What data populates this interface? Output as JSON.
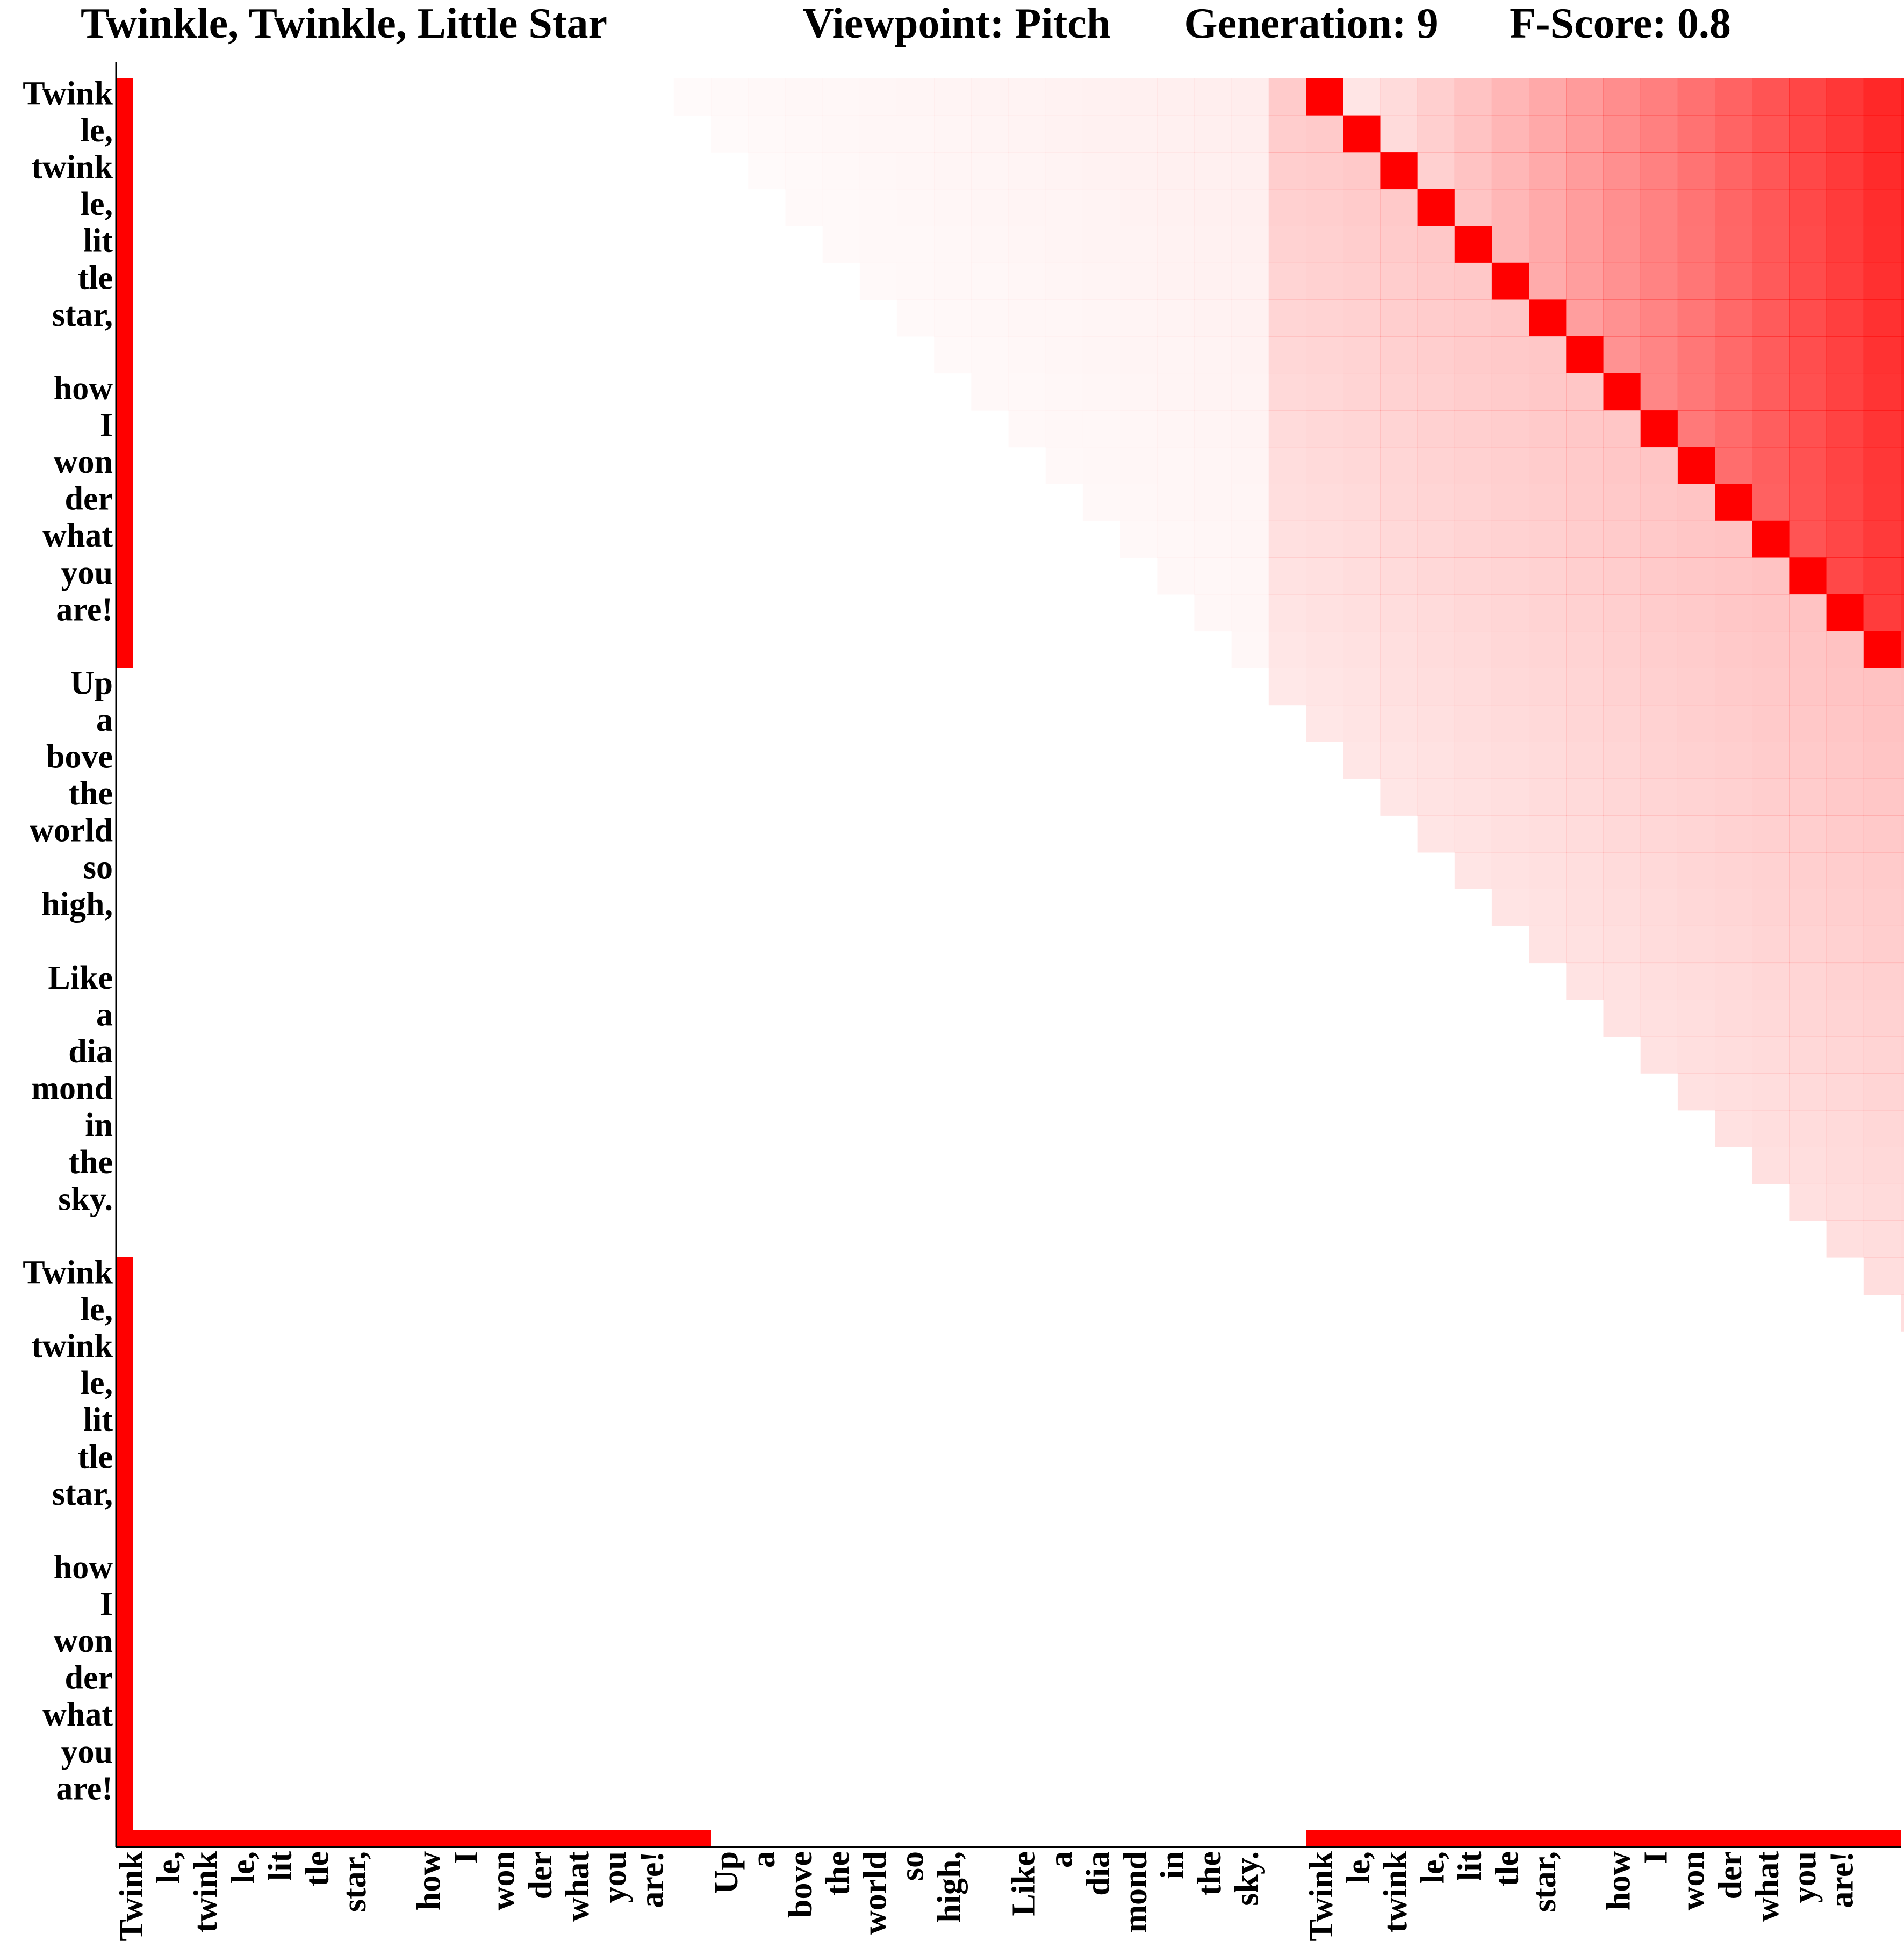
{
  "chart_data": {
    "type": "heatmap",
    "title_parts": [
      "Twinkle, Twinkle, Little Star",
      "Viewpoint: Pitch",
      "Generation: 9",
      "F-Score: 0.8"
    ],
    "labels": [
      "Twink",
      "le,",
      "twink",
      "le,",
      "lit",
      "tle",
      "star,",
      "",
      "how",
      "I",
      "won",
      "der",
      "what",
      "you",
      "are!",
      "",
      "Up",
      "a",
      "bove",
      "the",
      "world",
      "so",
      "high,",
      "",
      "Like",
      "a",
      "dia",
      "mond",
      "in",
      "the",
      "sky.",
      "",
      "Twink",
      "le,",
      "twink",
      "le,",
      "lit",
      "tle",
      "star,",
      "",
      "how",
      "I",
      "won",
      "der",
      "what",
      "you",
      "are!",
      ""
    ],
    "colors": {
      "highlight": "#ff0000",
      "axis": "#000000",
      "background": "#ffffff"
    },
    "y_segment_markers": [
      [
        0,
        15
      ],
      [
        32,
        47
      ]
    ],
    "x_segment_markers": [
      [
        0,
        15
      ],
      [
        32,
        47
      ]
    ],
    "diagonal_block": {
      "rows": [
        0,
        15
      ],
      "cols": [
        32,
        47
      ]
    },
    "gradient_block": {
      "rows": [
        0,
        33
      ],
      "cols": [
        12,
        48
      ],
      "max_intensity": 0.9
    }
  }
}
